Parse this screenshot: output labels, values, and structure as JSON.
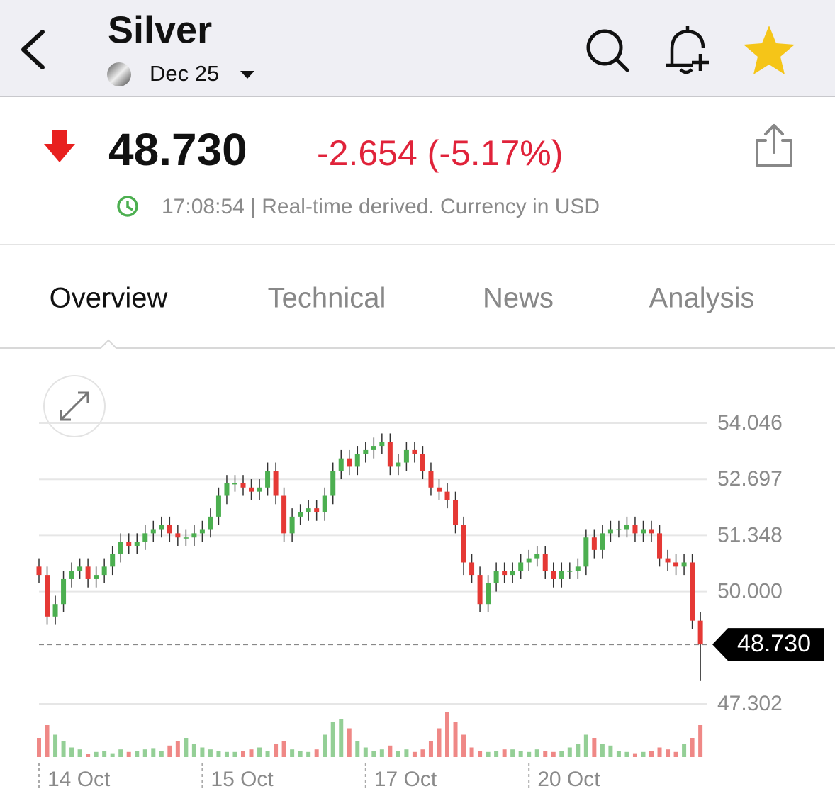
{
  "header": {
    "title": "Silver",
    "contract": "Dec 25"
  },
  "quote": {
    "price": "48.730",
    "change": "-2.654 (-5.17%)",
    "timestamp": "17:08:54 | Real-time derived. Currency in USD"
  },
  "tabs": [
    "Overview",
    "Technical",
    "News",
    "Analysis"
  ],
  "chart_data": {
    "type": "candlestick",
    "categories": [
      "14 Oct",
      null,
      null,
      null,
      null,
      null,
      null,
      null,
      null,
      null,
      null,
      null,
      null,
      null,
      null,
      null,
      null,
      null,
      null,
      null,
      "15 Oct",
      null,
      null,
      null,
      null,
      null,
      null,
      null,
      null,
      null,
      null,
      null,
      null,
      null,
      null,
      null,
      null,
      null,
      null,
      null,
      "17 Oct",
      null,
      null,
      null,
      null,
      null,
      null,
      null,
      null,
      null,
      null,
      null,
      null,
      null,
      null,
      null,
      null,
      null,
      null,
      null,
      "20 Oct",
      null,
      null,
      null,
      null,
      null,
      null,
      null,
      null,
      null,
      null,
      null,
      null,
      null,
      null,
      null,
      null,
      null,
      null,
      null,
      null,
      null
    ],
    "open": [
      50.6,
      50.4,
      49.4,
      49.7,
      50.3,
      50.5,
      50.6,
      50.3,
      50.4,
      50.6,
      50.9,
      51.2,
      51.1,
      51.2,
      51.4,
      51.5,
      51.6,
      51.4,
      51.3,
      51.3,
      51.4,
      51.5,
      51.8,
      52.3,
      52.6,
      52.6,
      52.5,
      52.4,
      52.5,
      52.9,
      52.3,
      51.4,
      51.8,
      51.9,
      52.0,
      51.9,
      52.3,
      52.9,
      53.2,
      53.0,
      53.3,
      53.4,
      53.5,
      53.6,
      53.0,
      53.1,
      53.4,
      53.3,
      52.9,
      52.5,
      52.4,
      52.2,
      51.6,
      50.7,
      50.4,
      49.7,
      50.2,
      50.5,
      50.4,
      50.5,
      50.7,
      50.8,
      50.9,
      50.5,
      50.3,
      50.5,
      50.5,
      50.6,
      51.3,
      51.0,
      51.4,
      51.5,
      51.5,
      51.6,
      51.4,
      51.5,
      51.4,
      50.8,
      50.7,
      50.6,
      50.7,
      49.3
    ],
    "high": [
      50.8,
      50.6,
      49.9,
      50.5,
      50.7,
      50.8,
      50.8,
      50.6,
      50.8,
      51.1,
      51.4,
      51.4,
      51.4,
      51.6,
      51.7,
      51.8,
      51.8,
      51.6,
      51.5,
      51.6,
      51.7,
      52.0,
      52.5,
      52.8,
      52.8,
      52.8,
      52.7,
      52.7,
      53.1,
      53.1,
      52.5,
      52.0,
      52.1,
      52.2,
      52.2,
      52.5,
      53.1,
      53.4,
      53.4,
      53.5,
      53.6,
      53.7,
      53.8,
      53.8,
      53.3,
      53.6,
      53.6,
      53.5,
      53.1,
      52.7,
      52.6,
      52.4,
      51.8,
      50.9,
      50.6,
      50.4,
      50.7,
      50.7,
      50.7,
      50.9,
      51.0,
      51.1,
      51.1,
      50.7,
      50.7,
      50.7,
      50.8,
      51.5,
      51.5,
      51.6,
      51.7,
      51.7,
      51.8,
      51.8,
      51.7,
      51.7,
      51.6,
      51.0,
      50.9,
      50.9,
      50.9,
      49.5
    ],
    "low": [
      50.2,
      49.2,
      49.2,
      49.5,
      50.1,
      50.3,
      50.1,
      50.1,
      50.2,
      50.4,
      50.7,
      50.9,
      50.9,
      51.0,
      51.2,
      51.3,
      51.2,
      51.1,
      51.1,
      51.1,
      51.2,
      51.3,
      51.6,
      52.1,
      52.4,
      52.3,
      52.2,
      52.2,
      52.3,
      52.1,
      51.2,
      51.2,
      51.6,
      51.7,
      51.7,
      51.7,
      52.1,
      52.7,
      52.8,
      52.8,
      53.1,
      53.2,
      53.3,
      52.8,
      52.8,
      52.9,
      53.1,
      52.7,
      52.3,
      52.2,
      52.0,
      51.4,
      50.4,
      50.2,
      49.5,
      49.5,
      50.0,
      50.2,
      50.2,
      50.3,
      50.5,
      50.6,
      50.3,
      50.1,
      50.1,
      50.3,
      50.3,
      50.4,
      50.8,
      50.8,
      51.2,
      51.3,
      51.3,
      51.2,
      51.2,
      51.2,
      50.6,
      50.5,
      50.4,
      50.4,
      49.1,
      47.85
    ],
    "close": [
      50.4,
      49.4,
      49.7,
      50.3,
      50.5,
      50.6,
      50.3,
      50.4,
      50.6,
      50.9,
      51.2,
      51.1,
      51.2,
      51.4,
      51.5,
      51.6,
      51.4,
      51.3,
      51.3,
      51.4,
      51.5,
      51.8,
      52.3,
      52.6,
      52.6,
      52.5,
      52.4,
      52.5,
      52.9,
      52.3,
      51.4,
      51.8,
      51.9,
      52.0,
      51.9,
      52.3,
      52.9,
      53.2,
      53.0,
      53.3,
      53.4,
      53.5,
      53.6,
      53.0,
      53.1,
      53.4,
      53.3,
      52.9,
      52.5,
      52.4,
      52.2,
      51.6,
      50.7,
      50.4,
      49.7,
      50.2,
      50.5,
      50.4,
      50.5,
      50.7,
      50.8,
      50.9,
      50.5,
      50.3,
      50.5,
      50.5,
      50.6,
      51.3,
      51.0,
      51.4,
      51.5,
      51.5,
      51.6,
      51.4,
      51.5,
      51.4,
      50.8,
      50.7,
      50.6,
      50.7,
      49.3,
      48.73
    ],
    "volumes": [
      30,
      50,
      35,
      25,
      15,
      12,
      5,
      8,
      10,
      6,
      12,
      8,
      10,
      12,
      14,
      10,
      18,
      25,
      30,
      20,
      15,
      12,
      10,
      8,
      8,
      10,
      12,
      15,
      10,
      20,
      25,
      12,
      10,
      8,
      12,
      35,
      55,
      60,
      45,
      25,
      15,
      10,
      12,
      18,
      10,
      12,
      8,
      12,
      25,
      45,
      70,
      55,
      35,
      15,
      10,
      8,
      10,
      12,
      12,
      10,
      8,
      12,
      10,
      8,
      10,
      15,
      20,
      35,
      30,
      20,
      18,
      10,
      8,
      6,
      8,
      10,
      15,
      12,
      8,
      20,
      30,
      50
    ],
    "ylim": [
      47.302,
      54.046
    ],
    "yticks": [
      54.046,
      52.697,
      51.348,
      {
        "value": 50,
        "label": "50.000"
      },
      47.302
    ],
    "last_price": {
      "value": 48.73,
      "label": "48.730"
    },
    "grid": true,
    "up_color": "#4caf50",
    "down_color": "#e53935"
  }
}
